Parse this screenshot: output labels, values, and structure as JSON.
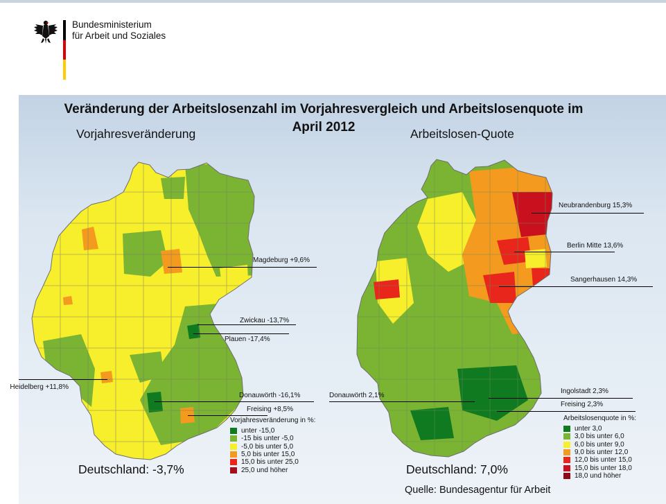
{
  "header": {
    "ministry_line1": "Bundesministerium",
    "ministry_line2": "für Arbeit und Soziales",
    "flag_colors": [
      "#000000",
      "#dd0000",
      "#ffcc00"
    ]
  },
  "slide": {
    "title_line1": "Veränderung der Arbeitslosenzahl im Vorjahresvergleich und Arbeitslosenquote im",
    "title_line2": "April 2012",
    "source": "Quelle:  Bundesagentur für Arbeit"
  },
  "map_left": {
    "subtitle": "Vorjahresveränderung",
    "callouts": [
      "Magdeburg +9,6%",
      "Zwickau -13,7%",
      "Plauen -17,4%",
      "Heidelberg +11,8%",
      "Donauwörth -16,1%",
      "Freising +8,5%"
    ],
    "legend_title": "Vorjahresveränderung in %:",
    "legend": [
      {
        "label": "unter -15,0",
        "color": "#0f7a1f"
      },
      {
        "label": "-15 bis unter -5,0",
        "color": "#7ab432"
      },
      {
        "label": "-5,0 bis unter 5,0",
        "color": "#f7ee2c"
      },
      {
        "label": "5,0 bis unter 15,0",
        "color": "#f39a1f"
      },
      {
        "label": "15,0 bis unter 25,0",
        "color": "#e8261c"
      },
      {
        "label": "25,0 und höher",
        "color": "#a3101a"
      }
    ],
    "total": "Deutschland: -3,7%"
  },
  "map_right": {
    "subtitle": "Arbeitslosen-Quote",
    "callouts": [
      "Neubrandenburg 15,3%",
      "Berlin Mitte 13,6%",
      "Sangerhausen 14,3%",
      "Donauwörth 2,1%",
      "Ingolstadt 2,3%",
      "Freising 2,3%"
    ],
    "legend_title": "Arbeitslosenquote in %:",
    "legend": [
      {
        "label": "unter 3,0",
        "color": "#0f7a1f"
      },
      {
        "label": "3,0 bis unter 6,0",
        "color": "#7ab432"
      },
      {
        "label": "6,0 bis unter 9,0",
        "color": "#f7ee2c"
      },
      {
        "label": "9,0 bis unter 12,0",
        "color": "#f39a1f"
      },
      {
        "label": "12,0 bis unter 15,0",
        "color": "#e8261c"
      },
      {
        "label": "15,0 bis unter 18,0",
        "color": "#c8101e"
      },
      {
        "label": "18,0 und höher",
        "color": "#8e0a14"
      }
    ],
    "total": "Deutschland: 7,0%"
  }
}
